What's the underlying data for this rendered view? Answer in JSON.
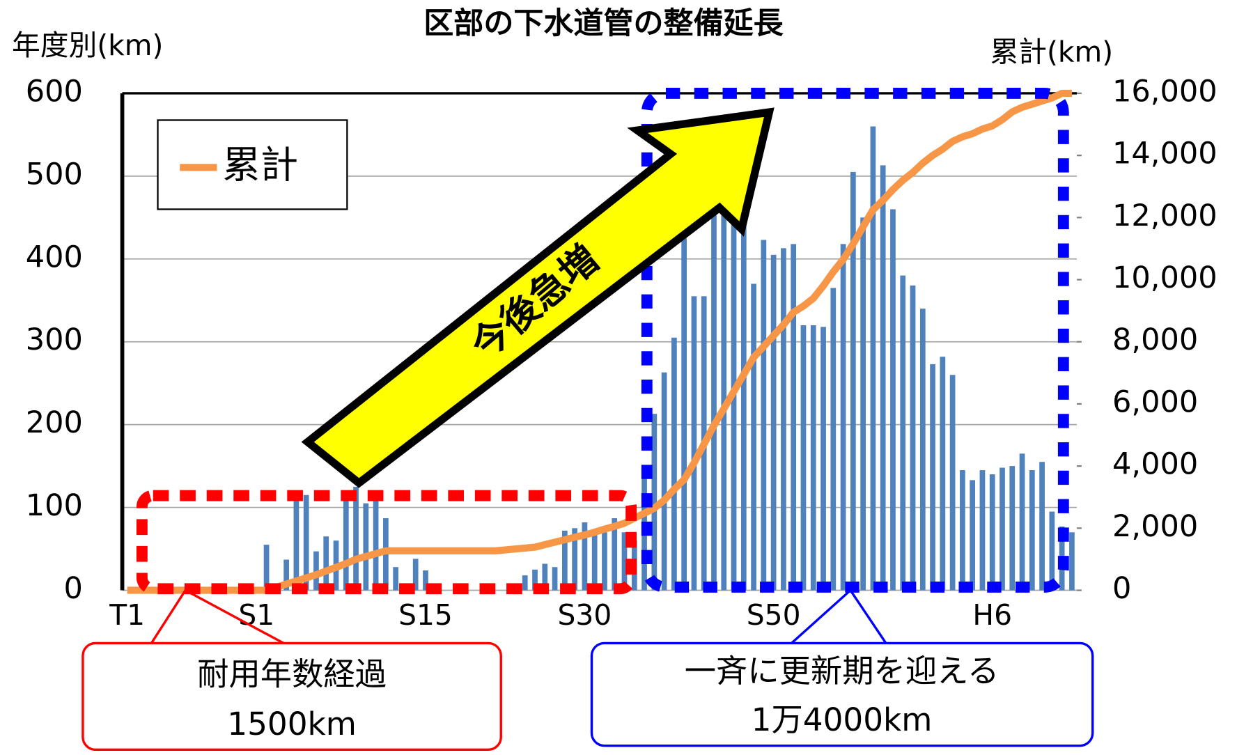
{
  "chart_data": {
    "type": "bar-line",
    "title": "区部の下水道管の整備延長",
    "y_label": "年度別(km)",
    "y2_label": "累計(km)",
    "categories": [
      "T1",
      null,
      null,
      null,
      null,
      null,
      null,
      null,
      null,
      null,
      null,
      null,
      null,
      "S1",
      null,
      null,
      null,
      null,
      null,
      null,
      null,
      null,
      null,
      null,
      null,
      null,
      null,
      null,
      null,
      null,
      "S15",
      null,
      null,
      null,
      null,
      null,
      null,
      null,
      null,
      null,
      null,
      null,
      null,
      null,
      null,
      null,
      "S30",
      null,
      null,
      null,
      null,
      null,
      null,
      null,
      null,
      null,
      null,
      null,
      null,
      null,
      null,
      null,
      null,
      null,
      null,
      "S50",
      null,
      null,
      null,
      null,
      null,
      null,
      null,
      null,
      null,
      null,
      null,
      null,
      null,
      null,
      null,
      null,
      null,
      null,
      null,
      null,
      null,
      "H6",
      null,
      null,
      null,
      null,
      null,
      null,
      null,
      null
    ],
    "series": [
      {
        "color": "#4f81bd",
        "type": "bar",
        "values": [
          0,
          0,
          0,
          0,
          0,
          0,
          0,
          0,
          0,
          0,
          0,
          0,
          0,
          0,
          55,
          0,
          37,
          115,
          115,
          47,
          65,
          60,
          115,
          125,
          105,
          110,
          87,
          28,
          0,
          38,
          24,
          0,
          0,
          2,
          0,
          0,
          0,
          0,
          0,
          0,
          18,
          25,
          32,
          28,
          72,
          75,
          82,
          68,
          70,
          87,
          70,
          60,
          150,
          213,
          263,
          305,
          425,
          355,
          355,
          460,
          560,
          470,
          460,
          370,
          423,
          405,
          413,
          418,
          320,
          320,
          318,
          365,
          418,
          505,
          450,
          560,
          513,
          460,
          380,
          368,
          340,
          273,
          282,
          260,
          145,
          133,
          145,
          140,
          148,
          150,
          165,
          145,
          155,
          95,
          77,
          70
        ]
      },
      {
        "name": "累計",
        "color": "#f79646",
        "type": "line",
        "axis": "y2",
        "values": [
          0,
          0,
          0,
          0,
          0,
          0,
          0,
          0,
          0,
          0,
          0,
          0,
          0,
          0,
          0,
          100,
          200,
          300,
          400,
          500,
          620,
          740,
          860,
          1000,
          1090,
          1180,
          1270,
          1270,
          1270,
          1270,
          1270,
          1270,
          1270,
          1270,
          1270,
          1270,
          1270,
          1270,
          1300,
          1330,
          1360,
          1390,
          1470,
          1550,
          1630,
          1710,
          1780,
          1870,
          1970,
          2060,
          2160,
          2320,
          2480,
          2640,
          2900,
          3250,
          3560,
          4100,
          4700,
          5300,
          5850,
          6400,
          6950,
          7500,
          7850,
          8200,
          8550,
          8950,
          9150,
          9400,
          9800,
          10250,
          10650,
          11150,
          11700,
          12250,
          12550,
          12900,
          13200,
          13450,
          13750,
          14000,
          14200,
          14450,
          14600,
          14700,
          14850,
          14950,
          15150,
          15400,
          15550,
          15650,
          15750,
          15850,
          16000,
          16000
        ]
      }
    ],
    "ylim": [
      0,
      600
    ],
    "yticks": [
      0,
      100,
      200,
      300,
      400,
      500,
      600
    ],
    "y2lim": [
      0,
      16000
    ],
    "y2ticks": [
      0,
      {
        "value": 2000,
        "label": "2,000"
      },
      {
        "value": 4000,
        "label": "4,000"
      },
      {
        "value": 6000,
        "label": "6,000"
      },
      {
        "value": 8000,
        "label": "8,000"
      },
      {
        "value": 10000,
        "label": "10,000"
      },
      {
        "value": 12000,
        "label": "12,000"
      },
      {
        "value": 14000,
        "label": "14,000"
      },
      {
        "value": 16000,
        "label": "16,000"
      }
    ],
    "grid": true,
    "annotations": {
      "arrow": "今後急増",
      "old_label": "耐用年数経過",
      "old_value": "1500km",
      "renew_label": "一斉に更新期を迎える",
      "renew_value": "1万4000km"
    }
  }
}
